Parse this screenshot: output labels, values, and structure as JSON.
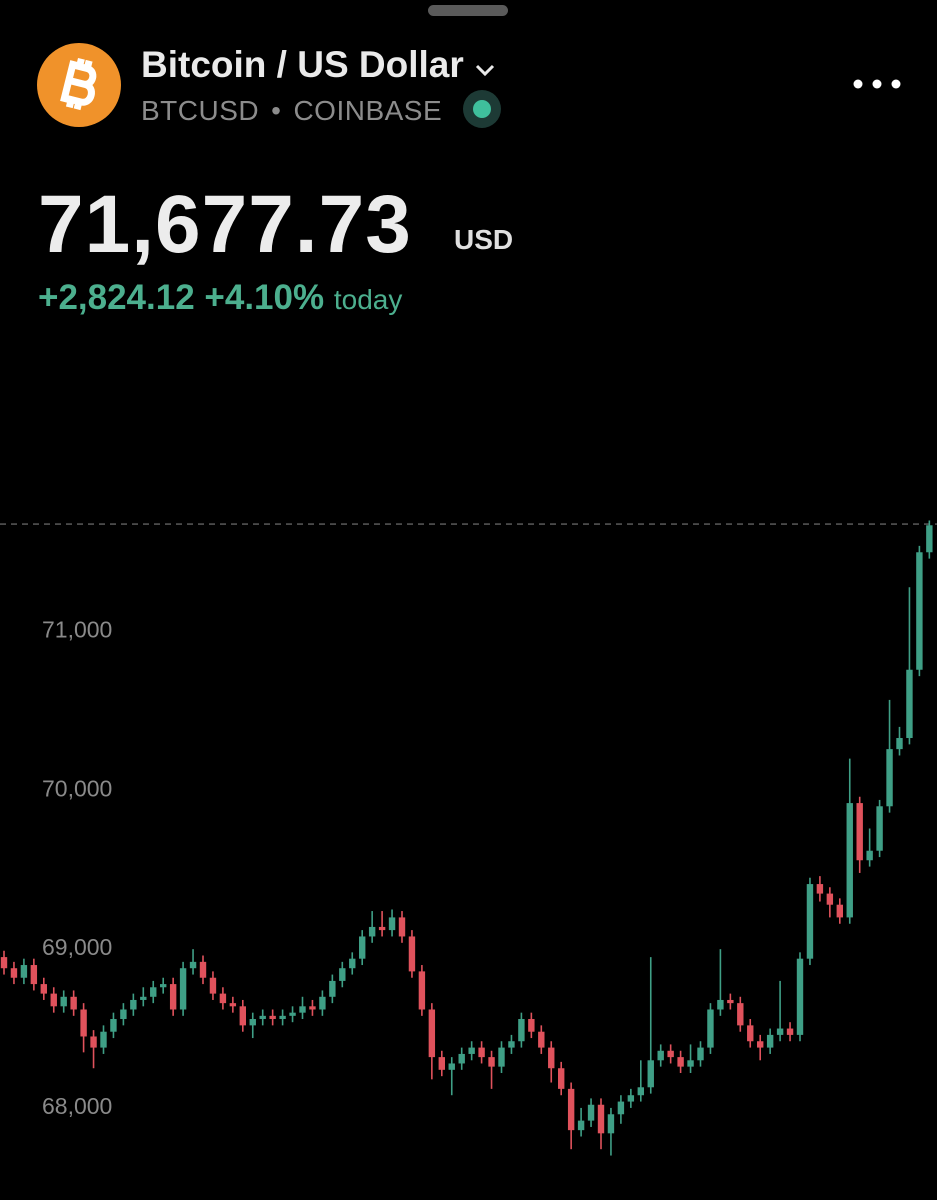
{
  "header": {
    "title": "Bitcoin / US Dollar",
    "symbol": "BTCUSD",
    "separator": "•",
    "exchange": "COINBASE"
  },
  "quote": {
    "price": "71,677.73",
    "currency": "USD",
    "change": "+2,824.12",
    "change_percent": "+4.10%",
    "period": "today"
  },
  "chart_data": {
    "type": "candlestick",
    "up_color": "#3f9f86",
    "down_color": "#e0525c",
    "ylim": [
      67420,
      72900
    ],
    "yticks": [
      {
        "value": 68000,
        "label": "68,000"
      },
      {
        "value": 69000,
        "label": "69,000"
      },
      {
        "value": 70000,
        "label": "70,000"
      },
      {
        "value": 71000,
        "label": "71,000"
      }
    ],
    "last_value": 71677.73,
    "open": [
      68950,
      68880,
      68820,
      68900,
      68780,
      68720,
      68640,
      68700,
      68620,
      68450,
      68380,
      68480,
      68560,
      68620,
      68680,
      68700,
      68760,
      68780,
      68620,
      68880,
      68920,
      68820,
      68720,
      68660,
      68640,
      68520,
      68560,
      68580,
      68560,
      68580,
      68600,
      68640,
      68620,
      68700,
      68800,
      68880,
      68940,
      69080,
      69140,
      69120,
      69200,
      69080,
      68860,
      68620,
      68320,
      68240,
      68280,
      68340,
      68380,
      68320,
      68260,
      68380,
      68420,
      68560,
      68480,
      68380,
      68250,
      68120,
      67860,
      67920,
      68020,
      67840,
      67960,
      68040,
      68080,
      68130,
      68300,
      68360,
      68320,
      68260,
      68300,
      68380,
      68620,
      68680,
      68660,
      68520,
      68420,
      68380,
      68460,
      68500,
      68460,
      68940,
      69410,
      69350,
      69280,
      69200,
      69920,
      69560,
      69620,
      69900,
      70260,
      70330,
      70760,
      71500
    ],
    "high": [
      68990,
      68920,
      68940,
      68940,
      68820,
      68760,
      68740,
      68740,
      68660,
      68490,
      68520,
      68600,
      68660,
      68720,
      68760,
      68800,
      68820,
      68820,
      68920,
      69000,
      68960,
      68860,
      68760,
      68700,
      68680,
      68600,
      68620,
      68620,
      68620,
      68640,
      68700,
      68680,
      68740,
      68840,
      68920,
      68980,
      69120,
      69240,
      69240,
      69250,
      69240,
      69120,
      68900,
      68660,
      68360,
      68320,
      68380,
      68420,
      68420,
      68360,
      68420,
      68460,
      68600,
      68600,
      68520,
      68420,
      68290,
      68160,
      68000,
      68060,
      68060,
      68000,
      68080,
      68120,
      68300,
      68950,
      68400,
      68400,
      68360,
      68400,
      68420,
      68660,
      69000,
      68720,
      68700,
      68560,
      68460,
      68500,
      68800,
      68540,
      68980,
      69450,
      69460,
      69390,
      69320,
      70200,
      69960,
      69760,
      69940,
      70570,
      70400,
      71280,
      71540,
      71700
    ],
    "low": [
      68840,
      68780,
      68780,
      68740,
      68680,
      68600,
      68600,
      68580,
      68350,
      68250,
      68340,
      68440,
      68520,
      68580,
      68640,
      68660,
      68720,
      68580,
      68580,
      68840,
      68780,
      68680,
      68620,
      68600,
      68480,
      68440,
      68520,
      68520,
      68520,
      68540,
      68560,
      68580,
      68580,
      68660,
      68760,
      68840,
      68900,
      69040,
      69080,
      69080,
      69040,
      68820,
      68580,
      68180,
      68200,
      68080,
      68240,
      68300,
      68280,
      68120,
      68220,
      68340,
      68380,
      68440,
      68340,
      68160,
      68080,
      67740,
      67820,
      67880,
      67740,
      67700,
      67900,
      68000,
      68040,
      68090,
      68260,
      68280,
      68220,
      68220,
      68260,
      68340,
      68580,
      68620,
      68480,
      68380,
      68300,
      68340,
      68420,
      68420,
      68420,
      68900,
      69300,
      69200,
      69160,
      69160,
      69480,
      69520,
      69580,
      69860,
      70220,
      70290,
      70720,
      71460
    ],
    "close": [
      68880,
      68820,
      68900,
      68780,
      68720,
      68640,
      68700,
      68620,
      68450,
      68380,
      68480,
      68560,
      68620,
      68680,
      68700,
      68760,
      68780,
      68620,
      68880,
      68920,
      68820,
      68720,
      68660,
      68640,
      68520,
      68560,
      68580,
      68560,
      68580,
      68600,
      68640,
      68620,
      68700,
      68800,
      68880,
      68940,
      69080,
      69140,
      69120,
      69200,
      69080,
      68860,
      68620,
      68320,
      68240,
      68280,
      68340,
      68380,
      68320,
      68260,
      68380,
      68420,
      68560,
      68480,
      68380,
      68250,
      68120,
      67860,
      67920,
      68020,
      67840,
      67960,
      68040,
      68080,
      68130,
      68300,
      68360,
      68320,
      68260,
      68300,
      68380,
      68620,
      68680,
      68660,
      68520,
      68420,
      68380,
      68460,
      68500,
      68460,
      68940,
      69410,
      69350,
      69280,
      69200,
      69920,
      69560,
      69620,
      69900,
      70260,
      70330,
      70760,
      71500,
      71670
    ]
  }
}
